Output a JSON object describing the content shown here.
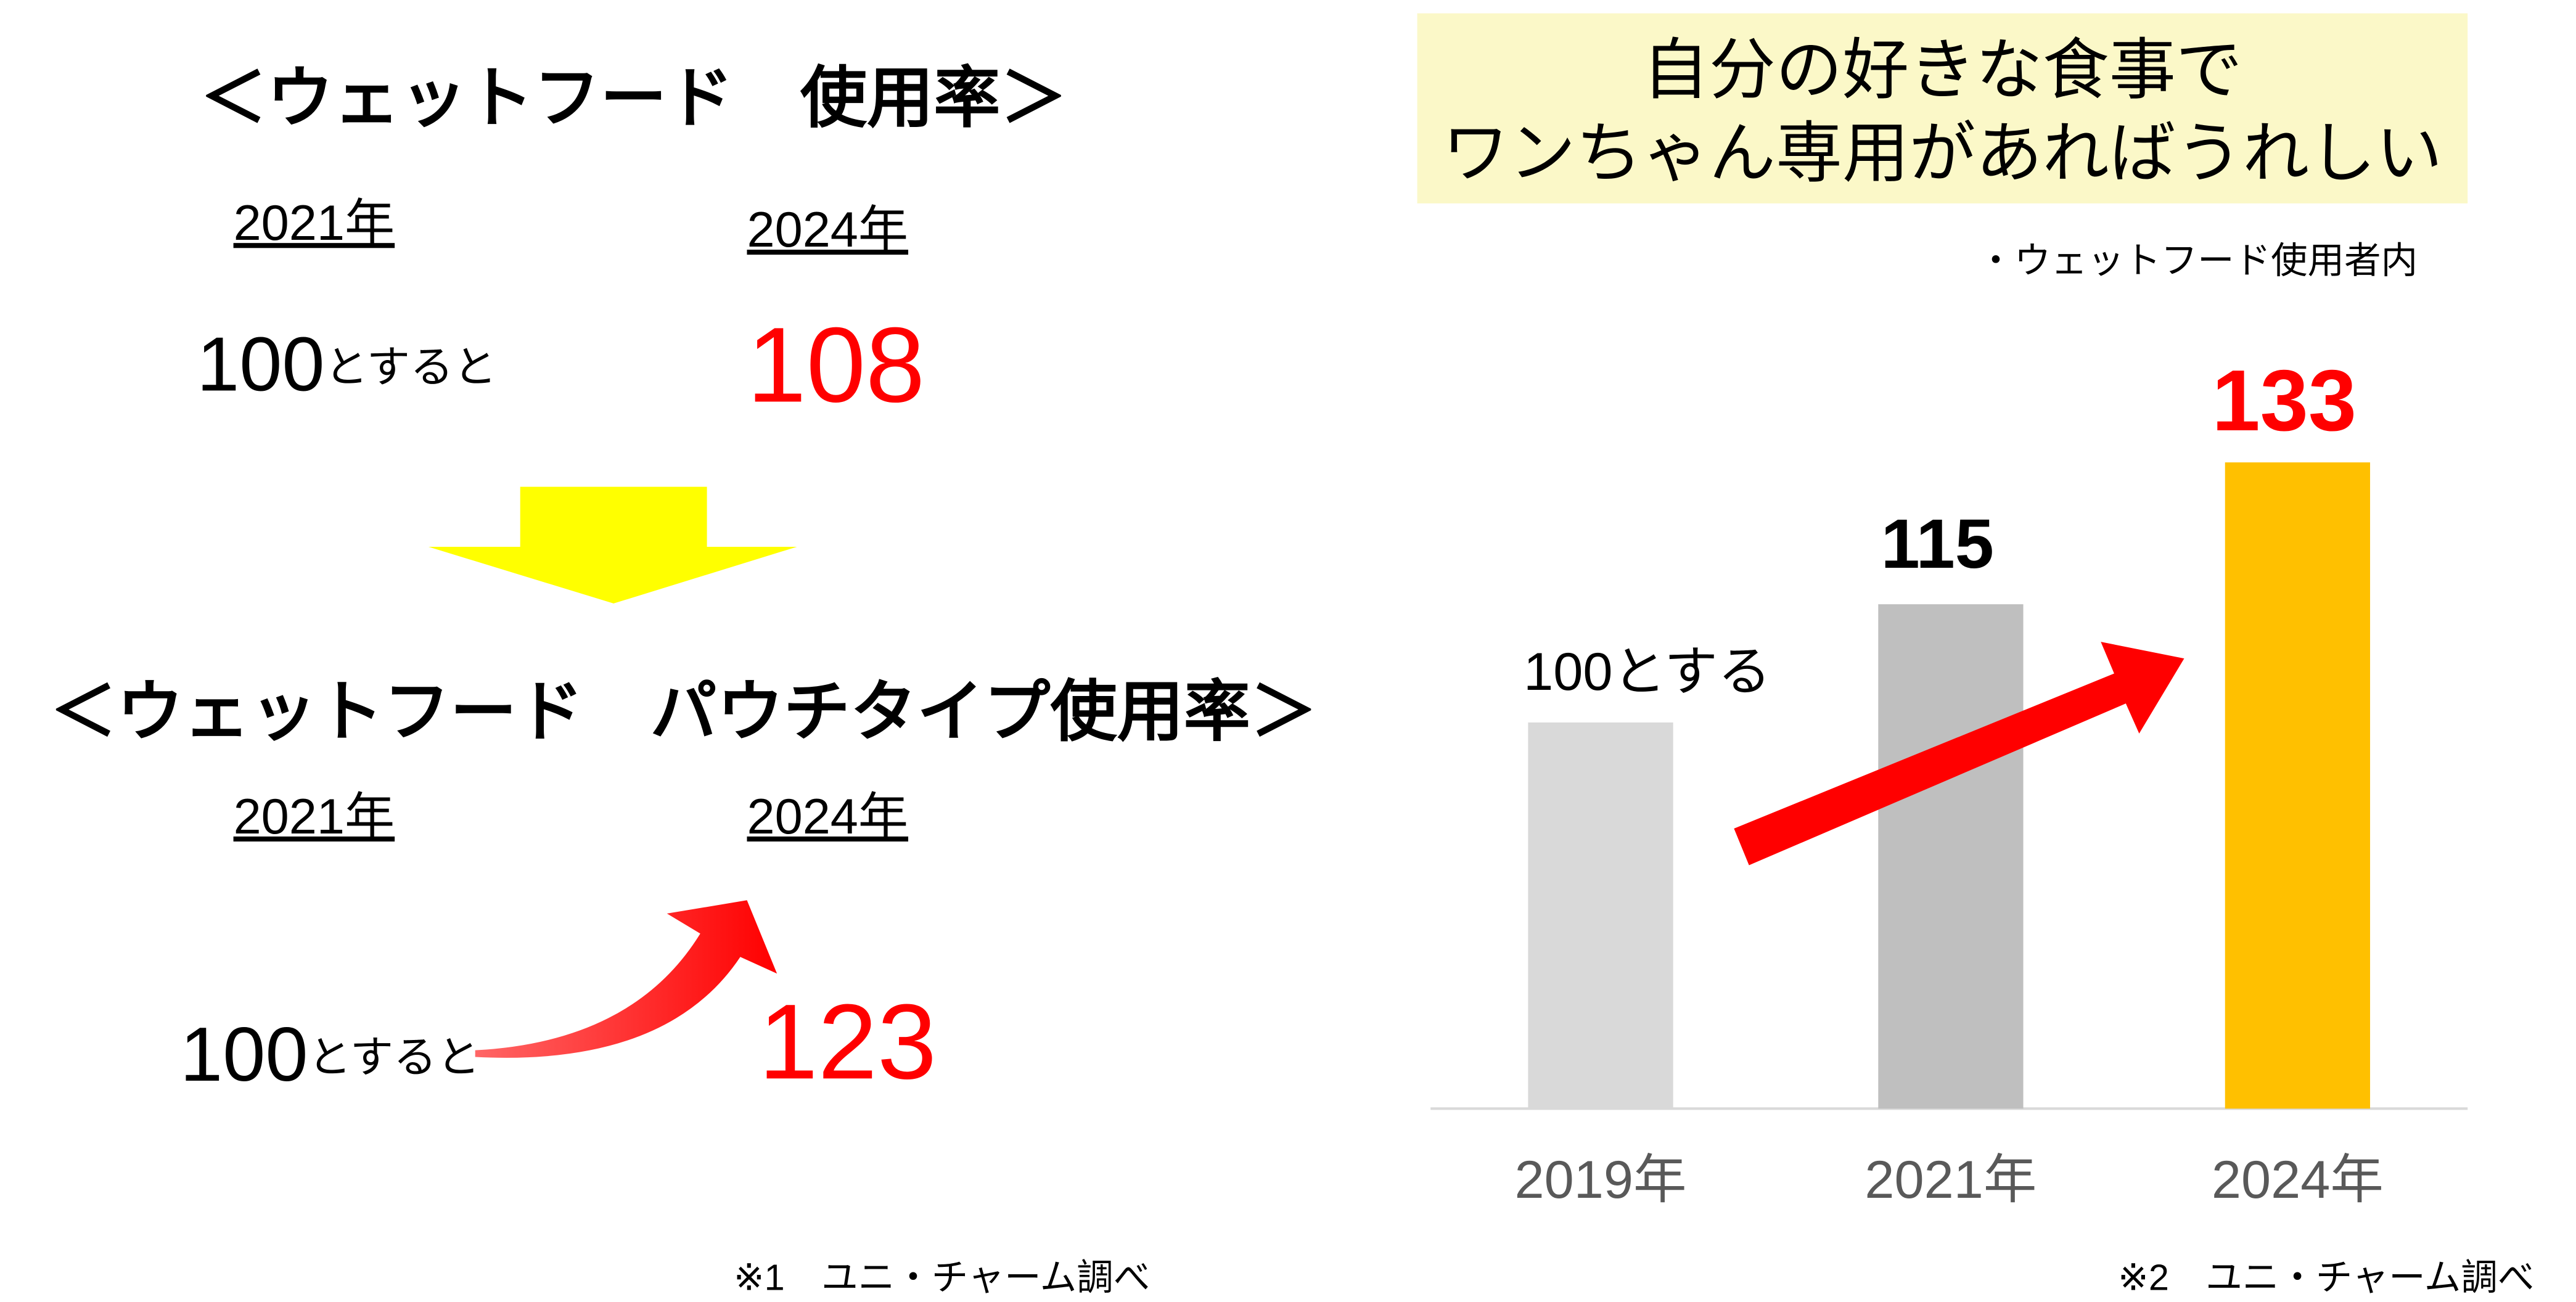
{
  "left": {
    "heading1": "＜ウェットフード　使用率＞",
    "year_a1": "2021年",
    "year_b1": "2024年",
    "base_number1": "100",
    "base_suffix1": "とすると",
    "result1": "108",
    "heading2": "＜ウェットフード　パウチタイプ使用率＞",
    "year_a2": "2021年",
    "year_b2": "2024年",
    "base_number2": "100",
    "base_suffix2": "とすると",
    "result2": "123",
    "source": "※1　ユニ・チャーム調べ"
  },
  "chart_data": {
    "type": "bar",
    "title_lines": [
      "自分の好きな食事で",
      "ワンちゃん専用があればうれしい"
    ],
    "subtitle": "・ウェットフード使用者内",
    "categories": [
      "2019年",
      "2021年",
      "2024年"
    ],
    "values": [
      100,
      115,
      133
    ],
    "value_labels": [
      "100とする",
      "115",
      "133"
    ],
    "colors": [
      "#d9d9d9",
      "#bfbfbf",
      "#ffc000"
    ],
    "label_colors": [
      "#000000",
      "#000000",
      "#ff0000"
    ],
    "ylim": [
      51,
      150
    ],
    "source": "※2　ユニ・チャーム調べ"
  }
}
